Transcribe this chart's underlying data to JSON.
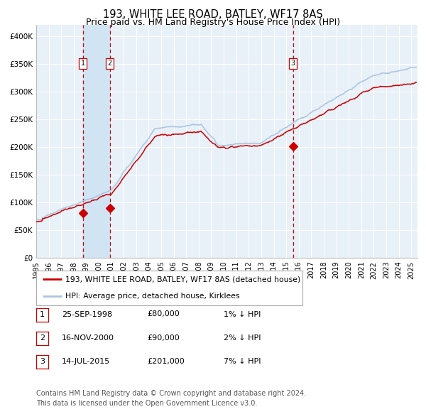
{
  "title": "193, WHITE LEE ROAD, BATLEY, WF17 8AS",
  "subtitle": "Price paid vs. HM Land Registry's House Price Index (HPI)",
  "ylim": [
    0,
    420000
  ],
  "xlim_start": 1995.0,
  "xlim_end": 2025.5,
  "yticks": [
    0,
    50000,
    100000,
    150000,
    200000,
    250000,
    300000,
    350000,
    400000
  ],
  "ytick_labels": [
    "£0",
    "£50K",
    "£100K",
    "£150K",
    "£200K",
    "£250K",
    "£300K",
    "£350K",
    "£400K"
  ],
  "xticks": [
    1995,
    1996,
    1997,
    1998,
    1999,
    2000,
    2001,
    2002,
    2003,
    2004,
    2005,
    2006,
    2007,
    2008,
    2009,
    2010,
    2011,
    2012,
    2013,
    2014,
    2015,
    2016,
    2017,
    2018,
    2019,
    2020,
    2021,
    2022,
    2023,
    2024,
    2025
  ],
  "background_color": "#ffffff",
  "plot_bg_color": "#e8f0f8",
  "grid_color": "#ffffff",
  "hpi_line_color": "#aac4e0",
  "price_line_color": "#cc0000",
  "sale_marker_color": "#cc0000",
  "vline_color": "#cc0000",
  "shade_color": "#d0e4f4",
  "sale1_x": 1998.73,
  "sale1_y": 80000,
  "sale2_x": 2000.88,
  "sale2_y": 90000,
  "sale3_x": 2015.54,
  "sale3_y": 201000,
  "legend_label_price": "193, WHITE LEE ROAD, BATLEY, WF17 8AS (detached house)",
  "legend_label_hpi": "HPI: Average price, detached house, Kirklees",
  "table_entries": [
    {
      "num": 1,
      "date": "25-SEP-1998",
      "price": "£80,000",
      "hpi": "1% ↓ HPI"
    },
    {
      "num": 2,
      "date": "16-NOV-2000",
      "price": "£90,000",
      "hpi": "2% ↓ HPI"
    },
    {
      "num": 3,
      "date": "14-JUL-2015",
      "price": "£201,000",
      "hpi": "7% ↓ HPI"
    }
  ],
  "footer_line1": "Contains HM Land Registry data © Crown copyright and database right 2024.",
  "footer_line2": "This data is licensed under the Open Government Licence v3.0."
}
